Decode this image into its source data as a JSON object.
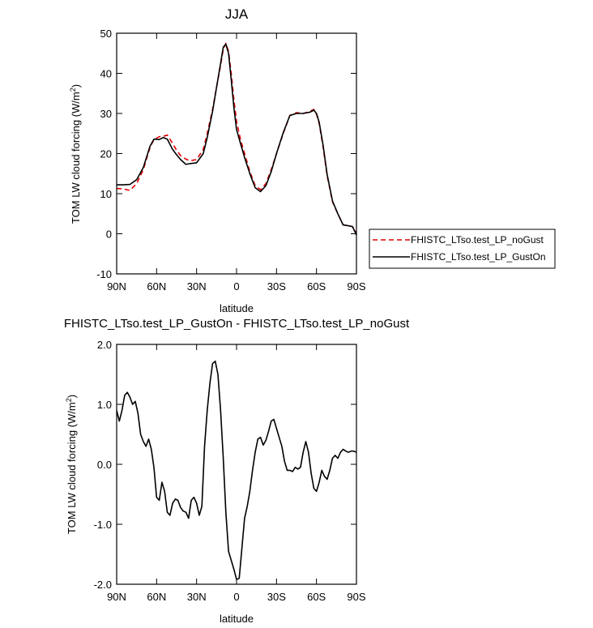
{
  "chart_data": [
    {
      "type": "line",
      "title": "JJA",
      "xlabel": "latitude",
      "ylabel_main": "TOM LW cloud forcing (W/m",
      "ylabel_sup": "2",
      "ylabel_close": ")",
      "xlim": [
        90,
        -90
      ],
      "ylim": [
        -10,
        50
      ],
      "xticks": [
        90,
        60,
        30,
        0,
        -30,
        -60,
        -90
      ],
      "xtick_labels": [
        "90N",
        "60N",
        "30N",
        "0",
        "30S",
        "60S",
        "90S"
      ],
      "yticks": [
        -10,
        0,
        10,
        20,
        30,
        40,
        50
      ],
      "ytick_labels": [
        "-10",
        "0",
        "10",
        "20",
        "30",
        "40",
        "50"
      ],
      "legend": "outside-right",
      "series": [
        {
          "name": "FHISTC_LTso.test_LP_noGust",
          "color": "#e00000",
          "dash": "dashed",
          "x": [
            90,
            85,
            80,
            75,
            70,
            65,
            62,
            58,
            55,
            52,
            48,
            45,
            42,
            38,
            35,
            30,
            25,
            22,
            18,
            15,
            12,
            10,
            8,
            6,
            4,
            2,
            0,
            -3,
            -6,
            -10,
            -14,
            -18,
            -22,
            -26,
            -30,
            -35,
            -40,
            -45,
            -50,
            -55,
            -58,
            -60,
            -62,
            -65,
            -68,
            -72,
            -76,
            -80,
            -84,
            -87,
            -90
          ],
          "y": [
            11.3,
            11.2,
            10.8,
            12.5,
            16.0,
            21.5,
            23.5,
            24.2,
            24.3,
            24.6,
            22.5,
            20.8,
            19.5,
            18.6,
            18.2,
            18.5,
            21.0,
            25.0,
            31.0,
            36.5,
            42.0,
            46.0,
            47.5,
            45.5,
            40.0,
            33.5,
            28.0,
            23.5,
            20.0,
            15.5,
            12.0,
            11.0,
            12.5,
            16.0,
            20.0,
            25.0,
            29.5,
            30.2,
            30.0,
            30.5,
            31.0,
            29.8,
            27.5,
            21.5,
            14.5,
            8.0,
            5.0,
            2.2,
            2.0,
            1.8,
            0.0
          ]
        },
        {
          "name": "FHISTC_LTso.test_LP_GustOn",
          "color": "#000000",
          "dash": "solid",
          "x": [
            90,
            85,
            80,
            75,
            70,
            65,
            62,
            58,
            55,
            52,
            48,
            45,
            42,
            38,
            35,
            30,
            25,
            22,
            18,
            15,
            12,
            10,
            8,
            6,
            4,
            2,
            0,
            -3,
            -6,
            -10,
            -14,
            -18,
            -22,
            -26,
            -30,
            -35,
            -40,
            -45,
            -50,
            -55,
            -58,
            -60,
            -62,
            -65,
            -68,
            -72,
            -76,
            -80,
            -84,
            -87,
            -90
          ],
          "y": [
            12.2,
            12.2,
            12.3,
            13.5,
            16.5,
            21.8,
            23.6,
            23.5,
            24.0,
            23.6,
            21.0,
            19.7,
            18.5,
            17.3,
            17.5,
            17.7,
            20.0,
            24.0,
            30.5,
            36.5,
            42.5,
            46.5,
            47.3,
            45.0,
            38.5,
            31.5,
            26.0,
            22.5,
            19.0,
            15.0,
            11.5,
            10.5,
            12.0,
            15.5,
            20.0,
            25.2,
            29.5,
            30.0,
            30.0,
            30.3,
            30.8,
            30.0,
            27.8,
            22.0,
            14.8,
            8.2,
            5.0,
            2.2,
            2.0,
            1.8,
            -0.3
          ]
        }
      ]
    },
    {
      "type": "line",
      "title": "FHISTC_LTso.test_LP_GustOn - FHISTC_LTso.test_LP_noGust",
      "xlabel": "latitude",
      "ylabel_main": "TOM LW cloud forcing (W/m",
      "ylabel_sup": "2",
      "ylabel_close": ")",
      "xlim": [
        90,
        -90
      ],
      "ylim": [
        -2.0,
        2.0
      ],
      "xticks": [
        90,
        60,
        30,
        0,
        -30,
        -60,
        -90
      ],
      "xtick_labels": [
        "90N",
        "60N",
        "30N",
        "0",
        "30S",
        "60S",
        "90S"
      ],
      "yticks": [
        -2.0,
        -1.0,
        0.0,
        1.0,
        2.0
      ],
      "ytick_labels": [
        "-2.0",
        "-1.0",
        "0.0",
        "1.0",
        "2.0"
      ],
      "series": [
        {
          "color": "#000000",
          "dash": "solid",
          "x": [
            90,
            88,
            86,
            84,
            82,
            80,
            78,
            76,
            74,
            72,
            70,
            68,
            66,
            64,
            62,
            60,
            58,
            56,
            54,
            52,
            50,
            48,
            46,
            44,
            42,
            40,
            38,
            36,
            34,
            32,
            30,
            28,
            26,
            24,
            22,
            20,
            18,
            16,
            14,
            12,
            10,
            8,
            6,
            4,
            2,
            0,
            -2,
            -4,
            -6,
            -8,
            -10,
            -12,
            -14,
            -16,
            -18,
            -20,
            -22,
            -24,
            -26,
            -28,
            -30,
            -32,
            -34,
            -36,
            -38,
            -40,
            -42,
            -44,
            -46,
            -48,
            -50,
            -52,
            -54,
            -56,
            -58,
            -60,
            -62,
            -64,
            -66,
            -68,
            -70,
            -72,
            -74,
            -76,
            -78,
            -80,
            -82,
            -84,
            -86,
            -88,
            -90
          ],
          "y": [
            0.9,
            0.72,
            0.9,
            1.15,
            1.2,
            1.12,
            1.0,
            1.05,
            0.85,
            0.5,
            0.38,
            0.3,
            0.42,
            0.25,
            -0.05,
            -0.55,
            -0.6,
            -0.3,
            -0.45,
            -0.8,
            -0.85,
            -0.65,
            -0.58,
            -0.6,
            -0.72,
            -0.78,
            -0.8,
            -0.9,
            -0.6,
            -0.55,
            -0.65,
            -0.85,
            -0.7,
            0.3,
            0.9,
            1.35,
            1.68,
            1.72,
            1.5,
            0.9,
            0.1,
            -0.8,
            -1.45,
            -1.6,
            -1.75,
            -1.92,
            -1.9,
            -1.4,
            -0.9,
            -0.7,
            -0.45,
            -0.1,
            0.2,
            0.42,
            0.45,
            0.32,
            0.4,
            0.55,
            0.72,
            0.75,
            0.6,
            0.45,
            0.3,
            0.05,
            -0.1,
            -0.1,
            -0.12,
            -0.05,
            -0.08,
            -0.05,
            0.2,
            0.38,
            0.2,
            -0.15,
            -0.4,
            -0.45,
            -0.3,
            -0.1,
            -0.2,
            -0.25,
            -0.1,
            0.1,
            0.15,
            0.1,
            0.2,
            0.25,
            0.22,
            0.2,
            0.22,
            0.22,
            0.2
          ]
        }
      ]
    }
  ]
}
